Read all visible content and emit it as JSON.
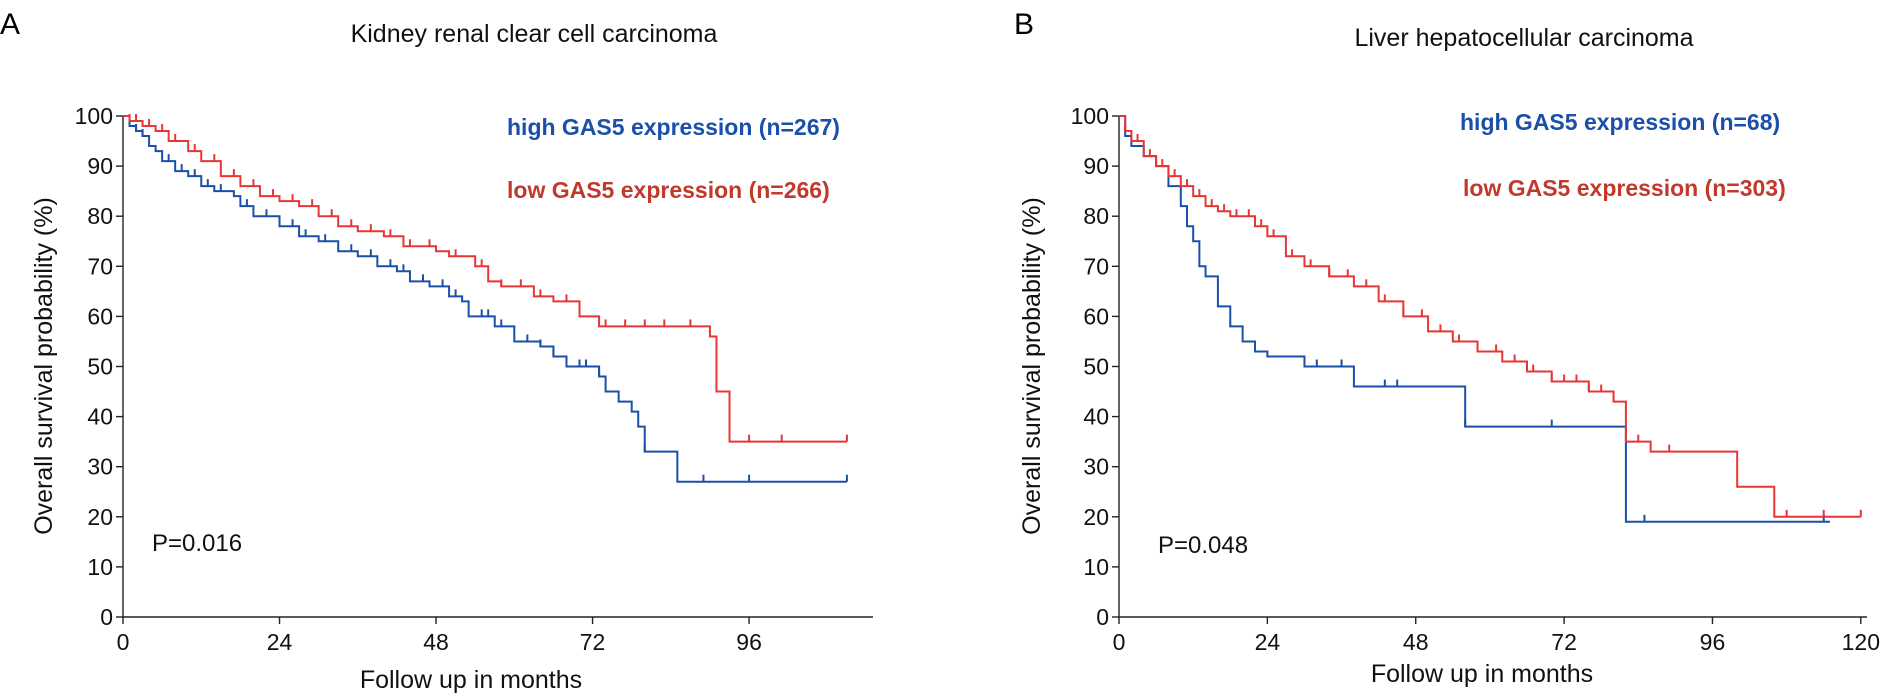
{
  "chart_data": [
    {
      "panel": "A",
      "type": "line",
      "step": true,
      "title": "Kidney renal clear cell carcinoma",
      "xlabel": "Follow up in months",
      "ylabel": "Overall survival probability (%)",
      "xlim": [
        0,
        115
      ],
      "ylim": [
        0,
        100
      ],
      "xticks": [
        0,
        24,
        48,
        72,
        96
      ],
      "yticks": [
        0,
        10,
        20,
        30,
        40,
        50,
        60,
        70,
        80,
        90,
        100
      ],
      "annotation": "P=0.016",
      "series": [
        {
          "name": "high GAS5 expression (n=267)",
          "color": "#1a4faa",
          "x": [
            0,
            1,
            2,
            3,
            4,
            5,
            6,
            8,
            10,
            12,
            14,
            17,
            18,
            20,
            24,
            27,
            30,
            33,
            36,
            39,
            42,
            44,
            47,
            50,
            52,
            53,
            57,
            60,
            64,
            66,
            68,
            73,
            74,
            76,
            78,
            79,
            80,
            85,
            111
          ],
          "y": [
            100,
            98,
            97,
            96,
            94,
            93,
            91,
            89,
            88,
            86,
            85,
            84,
            82,
            80,
            78,
            76,
            75,
            73,
            72,
            70,
            69,
            67,
            66,
            64,
            63,
            60,
            58,
            55,
            54,
            52,
            50,
            48,
            45,
            43,
            41,
            38,
            33,
            27,
            27
          ],
          "censor_x": [
            2,
            3,
            7,
            9,
            11,
            13,
            15,
            19,
            22,
            26,
            28,
            31,
            35,
            38,
            41,
            43,
            46,
            49,
            51,
            55,
            56,
            58,
            62,
            64,
            66,
            70,
            71,
            73,
            80,
            89,
            96,
            111
          ]
        },
        {
          "name": "low GAS5 expression (n=266)",
          "color": "#e83535",
          "x": [
            0,
            1,
            3,
            5,
            7,
            10,
            12,
            15,
            18,
            21,
            24,
            27,
            30,
            33,
            36,
            40,
            43,
            48,
            50,
            54,
            56,
            58,
            63,
            66,
            70,
            73,
            90,
            91,
            93,
            111
          ],
          "y": [
            100,
            99,
            98,
            97,
            95,
            93,
            91,
            88,
            86,
            84,
            83,
            82,
            80,
            78,
            77,
            76,
            74,
            73,
            72,
            70,
            67,
            66,
            64,
            63,
            60,
            58,
            56,
            45,
            35,
            35
          ],
          "censor_x": [
            1,
            2,
            4,
            6,
            8,
            11,
            14,
            17,
            20,
            23,
            26,
            29,
            32,
            35,
            38,
            41,
            44,
            47,
            51,
            55,
            58,
            61,
            64,
            68,
            74,
            77,
            80,
            83,
            87,
            96,
            101,
            111
          ]
        }
      ]
    },
    {
      "panel": "B",
      "type": "line",
      "step": true,
      "title": "Liver hepatocellular carcinoma",
      "xlabel": "Follow up in months",
      "ylabel": "Overall survival probability (%)",
      "xlim": [
        0,
        121
      ],
      "ylim": [
        0,
        100
      ],
      "xticks": [
        0,
        24,
        48,
        72,
        96,
        120
      ],
      "yticks": [
        0,
        10,
        20,
        30,
        40,
        50,
        60,
        70,
        80,
        90,
        100
      ],
      "annotation": "P=0.048",
      "series": [
        {
          "name": "high GAS5 expression (n=68)",
          "color": "#1a4faa",
          "x": [
            0,
            1,
            2,
            4,
            6,
            8,
            10,
            11,
            12,
            13,
            14,
            16,
            18,
            20,
            22,
            24,
            30,
            38,
            56,
            82,
            115
          ],
          "y": [
            100,
            96,
            94,
            92,
            90,
            86,
            82,
            78,
            75,
            70,
            68,
            62,
            58,
            55,
            53,
            52,
            50,
            46,
            38,
            19,
            19
          ],
          "censor_x": [
            32,
            36,
            43,
            45,
            56,
            70,
            85,
            114
          ]
        },
        {
          "name": "low GAS5 expression (n=303)",
          "color": "#e83535",
          "x": [
            0,
            1,
            2,
            4,
            6,
            8,
            10,
            12,
            14,
            16,
            18,
            22,
            24,
            27,
            30,
            34,
            38,
            42,
            46,
            50,
            54,
            58,
            62,
            66,
            70,
            76,
            80,
            82,
            86,
            100,
            106,
            120
          ],
          "y": [
            100,
            97,
            95,
            92,
            90,
            88,
            86,
            84,
            82,
            81,
            80,
            78,
            76,
            72,
            70,
            68,
            66,
            63,
            60,
            57,
            55,
            53,
            51,
            49,
            47,
            45,
            43,
            35,
            33,
            26,
            20,
            20
          ],
          "censor_x": [
            1,
            3,
            5,
            7,
            9,
            11,
            13,
            15,
            17,
            19,
            21,
            23,
            25,
            28,
            31,
            34,
            37,
            40,
            43,
            46,
            49,
            52,
            55,
            58,
            61,
            64,
            67,
            70,
            72,
            74,
            76,
            78,
            80,
            84,
            89,
            108,
            114,
            120
          ]
        }
      ]
    }
  ]
}
